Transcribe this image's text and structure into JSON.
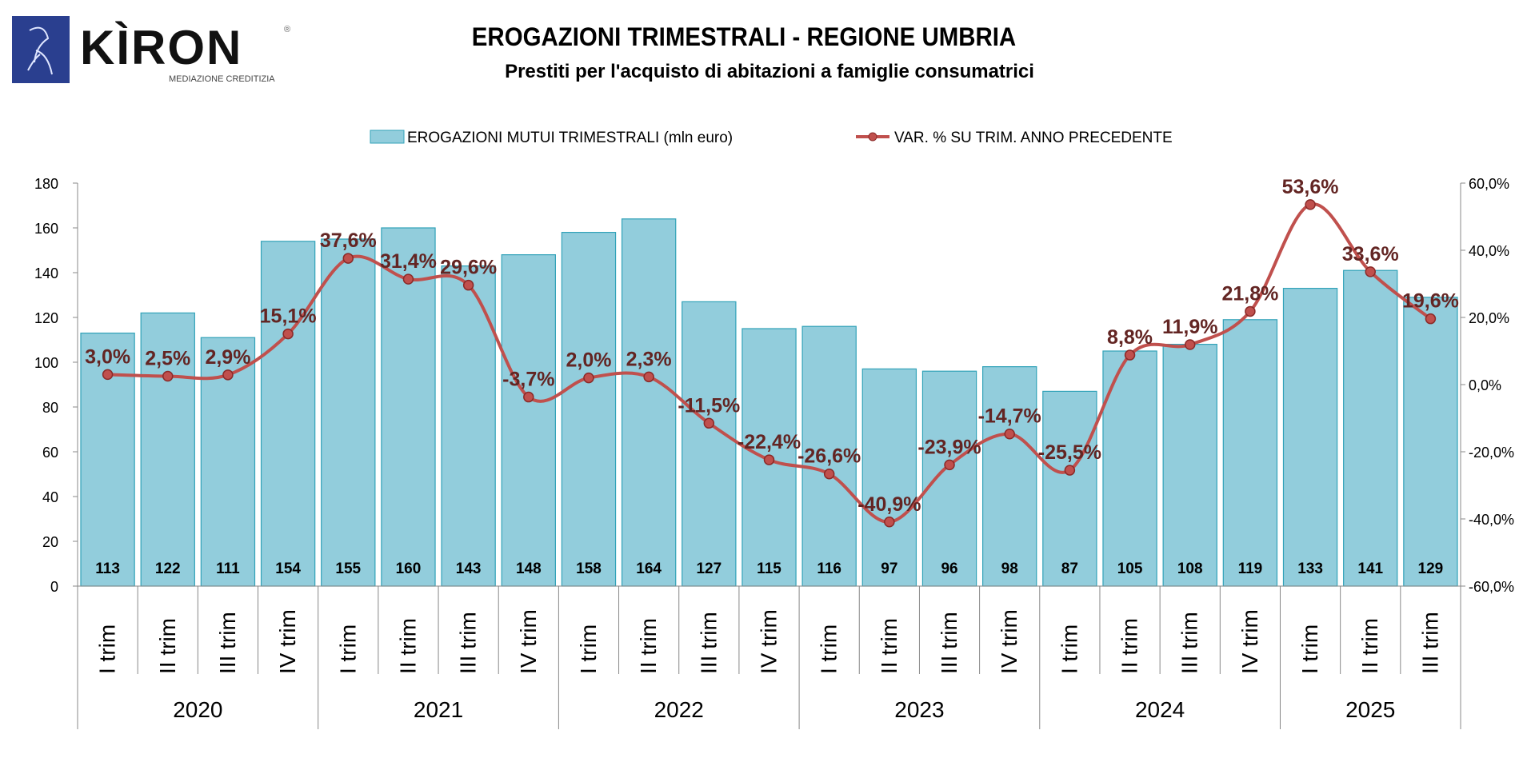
{
  "logo": {
    "text": "KÌRON",
    "tagline": "MEDIAZIONE CREDITIZIA",
    "color": "#2a3f8f"
  },
  "header": {
    "title": "EROGAZIONI TRIMESTRALI - REGIONE UMBRIA",
    "subtitle": "Prestiti per l'acquisto di abitazioni a famiglie consumatrici"
  },
  "chart_data": {
    "type": "bar+line",
    "title": "EROGAZIONI TRIMESTRALI - REGIONE UMBRIA",
    "subtitle": "Prestiti per l'acquisto di abitazioni a famiglie consumatrici",
    "legend_position": "top",
    "years": [
      "2020",
      "2021",
      "2022",
      "2023",
      "2024",
      "2025"
    ],
    "categories": [
      {
        "year": "2020",
        "q": "I trim"
      },
      {
        "year": "2020",
        "q": "II trim"
      },
      {
        "year": "2020",
        "q": "III trim"
      },
      {
        "year": "2020",
        "q": "IV trim"
      },
      {
        "year": "2021",
        "q": "I trim"
      },
      {
        "year": "2021",
        "q": "II trim"
      },
      {
        "year": "2021",
        "q": "III trim"
      },
      {
        "year": "2021",
        "q": "IV trim"
      },
      {
        "year": "2022",
        "q": "I trim"
      },
      {
        "year": "2022",
        "q": "II trim"
      },
      {
        "year": "2022",
        "q": "III trim"
      },
      {
        "year": "2022",
        "q": "IV trim"
      },
      {
        "year": "2023",
        "q": "I trim"
      },
      {
        "year": "2023",
        "q": "II trim"
      },
      {
        "year": "2023",
        "q": "III trim"
      },
      {
        "year": "2023",
        "q": "IV trim"
      },
      {
        "year": "2024",
        "q": "I trim"
      },
      {
        "year": "2024",
        "q": "II trim"
      },
      {
        "year": "2024",
        "q": "III trim"
      },
      {
        "year": "2024",
        "q": "IV trim"
      },
      {
        "year": "2025",
        "q": "I trim"
      },
      {
        "year": "2025",
        "q": "II trim"
      },
      {
        "year": "2025",
        "q": "III trim"
      }
    ],
    "series": [
      {
        "name": "EROGAZIONI MUTUI TRIMESTRALI (mln euro)",
        "type": "bar",
        "axis": "left",
        "color": "#92cddc",
        "edge": "#31a2b8",
        "values": [
          113,
          122,
          111,
          154,
          155,
          160,
          143,
          148,
          158,
          164,
          127,
          115,
          116,
          97,
          96,
          98,
          87,
          105,
          108,
          119,
          133,
          141,
          129
        ],
        "labels": [
          "113",
          "122",
          "111",
          "154",
          "155",
          "160",
          "143",
          "148",
          "158",
          "164",
          "127",
          "115",
          "116",
          "97",
          "96",
          "98",
          "87",
          "105",
          "108",
          "119",
          "133",
          "141",
          "129"
        ]
      },
      {
        "name": "VAR. % SU TRIM. ANNO PRECEDENTE",
        "type": "line",
        "axis": "right",
        "color": "#c0504d",
        "label_color": "#632523",
        "values": [
          3.0,
          2.5,
          2.9,
          15.1,
          37.6,
          31.4,
          29.6,
          -3.7,
          2.0,
          2.3,
          -11.5,
          -22.4,
          -26.6,
          -40.9,
          -23.9,
          -14.7,
          -25.5,
          8.8,
          11.9,
          21.8,
          53.6,
          33.6,
          19.6
        ],
        "labels": [
          "3,0%",
          "2,5%",
          "2,9%",
          "15,1%",
          "37,6%",
          "31,4%",
          "29,6%",
          "-3,7%",
          "2,0%",
          "2,3%",
          "-11,5%",
          "-22,4%",
          "-26,6%",
          "-40,9%",
          "-23,9%",
          "-14,7%",
          "-25,5%",
          "8,8%",
          "11,9%",
          "21,8%",
          "53,6%",
          "33,6%",
          "19,6%"
        ]
      }
    ],
    "y_left": {
      "range": [
        0,
        180
      ],
      "ticks": [
        "0",
        "20",
        "40",
        "60",
        "80",
        "100",
        "120",
        "140",
        "160",
        "180"
      ]
    },
    "y_right": {
      "range": [
        -60,
        60
      ],
      "ticks": [
        "-60,0%",
        "-40,0%",
        "-20,0%",
        "0,0%",
        "20,0%",
        "40,0%",
        "60,0%"
      ]
    },
    "grid": false
  }
}
